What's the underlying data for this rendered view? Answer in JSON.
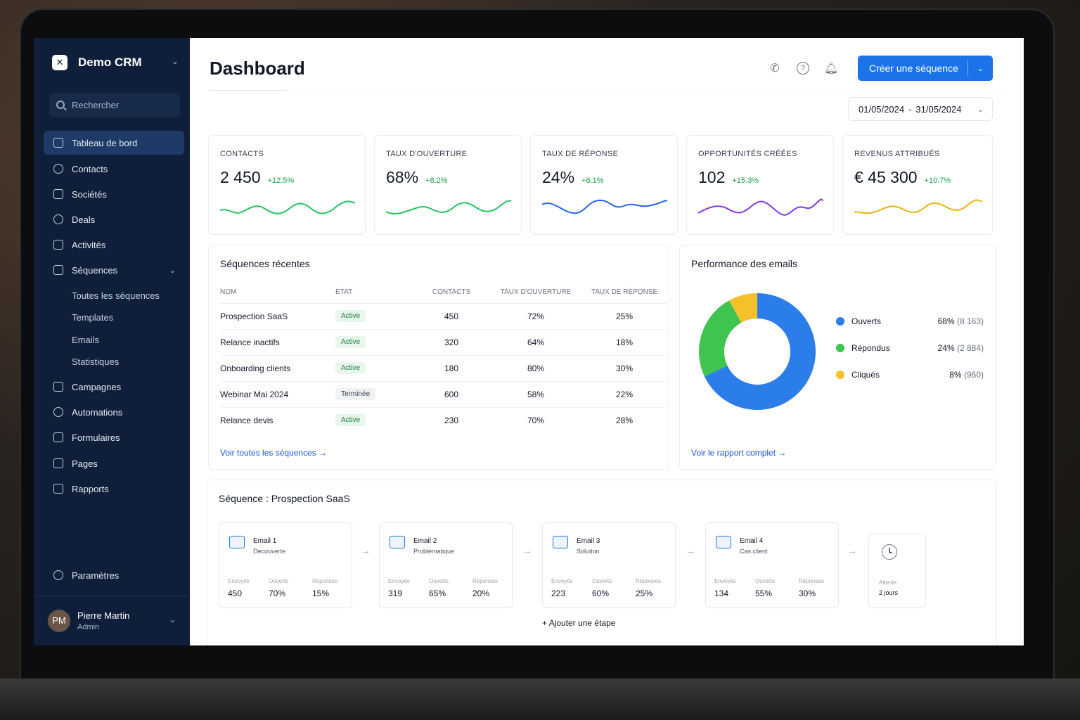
{
  "sidebar": {
    "brand": "Demo CRM",
    "search_placeholder": "Rechercher",
    "items": [
      {
        "label": "Tableau de bord",
        "icon": "home-icon"
      },
      {
        "label": "Contacts",
        "icon": "user-icon"
      },
      {
        "label": "Sociétés",
        "icon": "building-icon"
      },
      {
        "label": "Deals",
        "icon": "handshake-icon"
      },
      {
        "label": "Activités",
        "icon": "calendar-icon"
      },
      {
        "label": "Séquences",
        "icon": "sequence-icon"
      },
      {
        "label": "Campagnes",
        "icon": "send-icon"
      },
      {
        "label": "Automations",
        "icon": "automation-icon"
      },
      {
        "label": "Formulaires",
        "icon": "form-icon"
      },
      {
        "label": "Pages",
        "icon": "page-icon"
      },
      {
        "label": "Rapports",
        "icon": "chart-icon"
      }
    ],
    "sub_items": [
      "Toutes les séquences",
      "Templates",
      "Emails",
      "Statistiques"
    ],
    "settings": "Paramètres",
    "user": {
      "initials": "PM",
      "name": "Pierre Martin",
      "role": "Admin"
    }
  },
  "header": {
    "title": "Dashboard",
    "cta": "Créer une séquence",
    "date_start": "01/05/2024",
    "date_sep": "-",
    "date_end": "31/05/2024"
  },
  "kpis": [
    {
      "label": "CONTACTS",
      "value": "2 450",
      "delta": "+12.5%",
      "color": "#22c55e"
    },
    {
      "label": "TAUX D'OUVERTURE",
      "value": "68%",
      "delta": "+8.2%",
      "color": "#22c55e"
    },
    {
      "label": "TAUX DE RÉPONSE",
      "value": "24%",
      "delta": "+6.1%",
      "color": "#2563eb"
    },
    {
      "label": "OPPORTUNITÉS CRÉÉES",
      "value": "102",
      "delta": "+15.3%",
      "color": "#7c3aed"
    },
    {
      "label": "REVENUS ATTRIBUÉS",
      "value": "€ 45 300",
      "delta": "+10.7%",
      "color": "#eab308"
    }
  ],
  "sequences": {
    "title": "Séquences récentes",
    "columns": [
      "NOM",
      "ÉTAT",
      "CONTACTS",
      "TAUX D'OUVERTURE",
      "TAUX DE RÉPONSE"
    ],
    "rows": [
      {
        "name": "Prospection SaaS",
        "state": "Active",
        "contacts": "450",
        "open": "72%",
        "reply": "25%"
      },
      {
        "name": "Relance inactifs",
        "state": "Active",
        "contacts": "320",
        "open": "64%",
        "reply": "18%"
      },
      {
        "name": "Onboarding clients",
        "state": "Active",
        "contacts": "180",
        "open": "80%",
        "reply": "30%"
      },
      {
        "name": "Webinar Mai 2024",
        "state": "Terminée",
        "contacts": "600",
        "open": "58%",
        "reply": "22%"
      },
      {
        "name": "Relance devis",
        "state": "Active",
        "contacts": "230",
        "open": "70%",
        "reply": "28%"
      }
    ],
    "link": "Voir toutes les séquences"
  },
  "performance": {
    "title": "Performance des emails",
    "legend": [
      {
        "label": "Ouverts",
        "pct": "68%",
        "count": "(8 163)",
        "value": 68,
        "color": "#2b7de9"
      },
      {
        "label": "Répondus",
        "pct": "24%",
        "count": "(2 884)",
        "value": 24,
        "color": "#3fc44f"
      },
      {
        "label": "Cliqués",
        "pct": "8%",
        "count": "(960)",
        "value": 8,
        "color": "#f5c029"
      }
    ],
    "link": "Voir le rapport complet"
  },
  "flow": {
    "title": "Séquence : Prospection SaaS",
    "stat_labels": [
      "Envoyés",
      "Ouverts",
      "Réponses"
    ],
    "steps": [
      {
        "title": "Email 1",
        "sub": "Découverte",
        "sent": "450",
        "open": "70%",
        "reply": "15%"
      },
      {
        "title": "Email 2",
        "sub": "Problématique",
        "sent": "319",
        "open": "65%",
        "reply": "20%"
      },
      {
        "title": "Email 3",
        "sub": "Solution",
        "sent": "223",
        "open": "60%",
        "reply": "25%"
      },
      {
        "title": "Email 4",
        "sub": "Cas client",
        "sent": "134",
        "open": "55%",
        "reply": "30%"
      }
    ],
    "wait_label": "Attente",
    "wait_value": "2 jours",
    "add_step": "Ajouter une étape"
  }
}
